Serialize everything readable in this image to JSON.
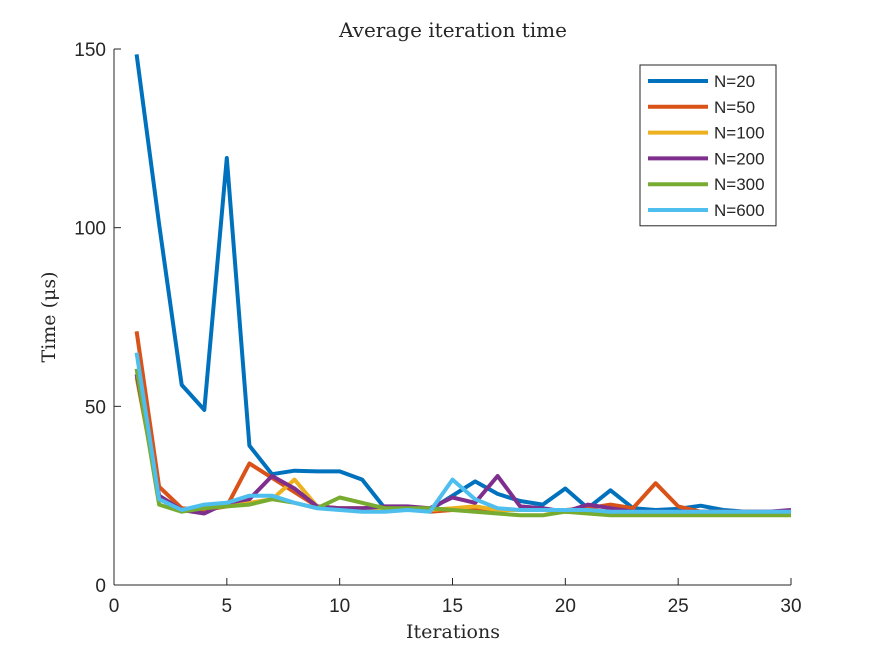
{
  "chart_data": {
    "type": "line",
    "title": "Average iteration time",
    "xlabel": "Iterations",
    "ylabel": "Time (μs)",
    "xlim": [
      0,
      30
    ],
    "ylim": [
      0,
      150
    ],
    "xticks": [
      0,
      5,
      10,
      15,
      20,
      25,
      30
    ],
    "yticks": [
      0,
      50,
      100,
      150
    ],
    "grid": false,
    "legend_position": "top-right",
    "x": [
      1,
      2,
      3,
      4,
      5,
      6,
      7,
      8,
      9,
      10,
      11,
      12,
      13,
      14,
      15,
      16,
      17,
      18,
      19,
      20,
      21,
      22,
      23,
      24,
      25,
      26,
      27,
      28,
      29,
      30
    ],
    "series": [
      {
        "name": "N=20",
        "color": "#0072BD",
        "values": [
          148.5,
          101,
          56,
          49,
          119.5,
          39,
          31,
          32,
          31.8,
          31.8,
          29.5,
          21.5,
          21,
          21,
          25,
          29,
          25.5,
          23.5,
          22.5,
          27,
          21.5,
          26.5,
          21.5,
          21,
          21.3,
          22.2,
          21,
          20.5,
          20.5,
          20.5
        ]
      },
      {
        "name": "N=50",
        "color": "#D95319",
        "values": [
          71,
          27.5,
          21.5,
          21,
          22,
          34,
          30,
          26,
          22,
          21.5,
          21.5,
          21,
          21.5,
          20.5,
          21,
          21.5,
          21,
          21,
          21,
          21,
          21.5,
          22.5,
          21.5,
          28.5,
          22,
          20.5,
          20.5,
          20.5,
          20.5,
          20.5
        ]
      },
      {
        "name": "N=100",
        "color": "#EDB120",
        "values": [
          58,
          25,
          21,
          21.5,
          22,
          23,
          24,
          29.5,
          22,
          21.5,
          21.5,
          21,
          21.5,
          21,
          21.5,
          22,
          21,
          21,
          21,
          20.5,
          20.5,
          20.5,
          20.5,
          20,
          20,
          20.5,
          20.5,
          20,
          20,
          20
        ]
      },
      {
        "name": "N=200",
        "color": "#7E2F8E",
        "values": [
          59,
          25,
          21,
          20,
          23,
          24,
          30.5,
          27,
          22,
          21.5,
          21.5,
          22,
          22,
          21.5,
          24.5,
          23,
          30.5,
          22,
          21.5,
          20.5,
          22.5,
          21.5,
          20.5,
          20.5,
          20.5,
          20.5,
          20.5,
          20.5,
          20.5,
          21
        ]
      },
      {
        "name": "N=300",
        "color": "#77AC30",
        "values": [
          60.5,
          22.5,
          20.5,
          21.5,
          22,
          22.5,
          24,
          23,
          21.5,
          24.5,
          23,
          21.5,
          21.5,
          21.5,
          21,
          20.5,
          20,
          19.5,
          19.5,
          20.5,
          20,
          19.5,
          19.5,
          19.5,
          19.5,
          19.5,
          19.5,
          19.5,
          19.5,
          19.5
        ]
      },
      {
        "name": "N=600",
        "color": "#4DBEEE",
        "values": [
          65,
          24,
          21,
          22.5,
          23,
          25,
          25,
          23,
          21.5,
          21,
          20.5,
          20.5,
          21,
          20.5,
          29.5,
          24,
          21.5,
          21,
          21,
          21,
          21,
          20.5,
          20.5,
          20.5,
          20.5,
          20.5,
          20.5,
          20.5,
          20.5,
          20.5
        ]
      }
    ]
  }
}
